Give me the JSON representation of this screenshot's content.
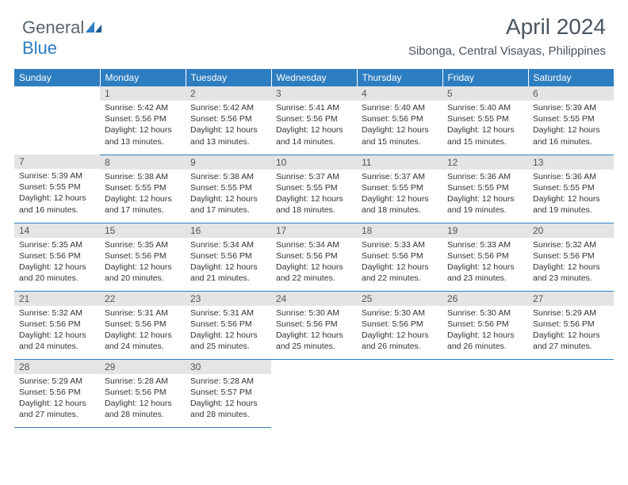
{
  "logo": {
    "general": "General",
    "blue": "Blue"
  },
  "title": "April 2024",
  "location": "Sibonga, Central Visayas, Philippines",
  "header_bg": "#2d7dc1",
  "daynum_bg": "#e4e4e4",
  "days_of_week": [
    "Sunday",
    "Monday",
    "Tuesday",
    "Wednesday",
    "Thursday",
    "Friday",
    "Saturday"
  ],
  "weeks": [
    [
      null,
      {
        "n": "1",
        "sr": "5:42 AM",
        "ss": "5:56 PM",
        "dl": "12 hours and 13 minutes."
      },
      {
        "n": "2",
        "sr": "5:42 AM",
        "ss": "5:56 PM",
        "dl": "12 hours and 13 minutes."
      },
      {
        "n": "3",
        "sr": "5:41 AM",
        "ss": "5:56 PM",
        "dl": "12 hours and 14 minutes."
      },
      {
        "n": "4",
        "sr": "5:40 AM",
        "ss": "5:56 PM",
        "dl": "12 hours and 15 minutes."
      },
      {
        "n": "5",
        "sr": "5:40 AM",
        "ss": "5:55 PM",
        "dl": "12 hours and 15 minutes."
      },
      {
        "n": "6",
        "sr": "5:39 AM",
        "ss": "5:55 PM",
        "dl": "12 hours and 16 minutes."
      }
    ],
    [
      {
        "n": "7",
        "sr": "5:39 AM",
        "ss": "5:55 PM",
        "dl": "12 hours and 16 minutes."
      },
      {
        "n": "8",
        "sr": "5:38 AM",
        "ss": "5:55 PM",
        "dl": "12 hours and 17 minutes."
      },
      {
        "n": "9",
        "sr": "5:38 AM",
        "ss": "5:55 PM",
        "dl": "12 hours and 17 minutes."
      },
      {
        "n": "10",
        "sr": "5:37 AM",
        "ss": "5:55 PM",
        "dl": "12 hours and 18 minutes."
      },
      {
        "n": "11",
        "sr": "5:37 AM",
        "ss": "5:55 PM",
        "dl": "12 hours and 18 minutes."
      },
      {
        "n": "12",
        "sr": "5:36 AM",
        "ss": "5:55 PM",
        "dl": "12 hours and 19 minutes."
      },
      {
        "n": "13",
        "sr": "5:36 AM",
        "ss": "5:55 PM",
        "dl": "12 hours and 19 minutes."
      }
    ],
    [
      {
        "n": "14",
        "sr": "5:35 AM",
        "ss": "5:56 PM",
        "dl": "12 hours and 20 minutes."
      },
      {
        "n": "15",
        "sr": "5:35 AM",
        "ss": "5:56 PM",
        "dl": "12 hours and 20 minutes."
      },
      {
        "n": "16",
        "sr": "5:34 AM",
        "ss": "5:56 PM",
        "dl": "12 hours and 21 minutes."
      },
      {
        "n": "17",
        "sr": "5:34 AM",
        "ss": "5:56 PM",
        "dl": "12 hours and 22 minutes."
      },
      {
        "n": "18",
        "sr": "5:33 AM",
        "ss": "5:56 PM",
        "dl": "12 hours and 22 minutes."
      },
      {
        "n": "19",
        "sr": "5:33 AM",
        "ss": "5:56 PM",
        "dl": "12 hours and 23 minutes."
      },
      {
        "n": "20",
        "sr": "5:32 AM",
        "ss": "5:56 PM",
        "dl": "12 hours and 23 minutes."
      }
    ],
    [
      {
        "n": "21",
        "sr": "5:32 AM",
        "ss": "5:56 PM",
        "dl": "12 hours and 24 minutes."
      },
      {
        "n": "22",
        "sr": "5:31 AM",
        "ss": "5:56 PM",
        "dl": "12 hours and 24 minutes."
      },
      {
        "n": "23",
        "sr": "5:31 AM",
        "ss": "5:56 PM",
        "dl": "12 hours and 25 minutes."
      },
      {
        "n": "24",
        "sr": "5:30 AM",
        "ss": "5:56 PM",
        "dl": "12 hours and 25 minutes."
      },
      {
        "n": "25",
        "sr": "5:30 AM",
        "ss": "5:56 PM",
        "dl": "12 hours and 26 minutes."
      },
      {
        "n": "26",
        "sr": "5:30 AM",
        "ss": "5:56 PM",
        "dl": "12 hours and 26 minutes."
      },
      {
        "n": "27",
        "sr": "5:29 AM",
        "ss": "5:56 PM",
        "dl": "12 hours and 27 minutes."
      }
    ],
    [
      {
        "n": "28",
        "sr": "5:29 AM",
        "ss": "5:56 PM",
        "dl": "12 hours and 27 minutes."
      },
      {
        "n": "29",
        "sr": "5:28 AM",
        "ss": "5:56 PM",
        "dl": "12 hours and 28 minutes."
      },
      {
        "n": "30",
        "sr": "5:28 AM",
        "ss": "5:57 PM",
        "dl": "12 hours and 28 minutes."
      },
      null,
      null,
      null,
      null
    ]
  ],
  "labels": {
    "sunrise": "Sunrise: ",
    "sunset": "Sunset: ",
    "daylight": "Daylight: "
  }
}
